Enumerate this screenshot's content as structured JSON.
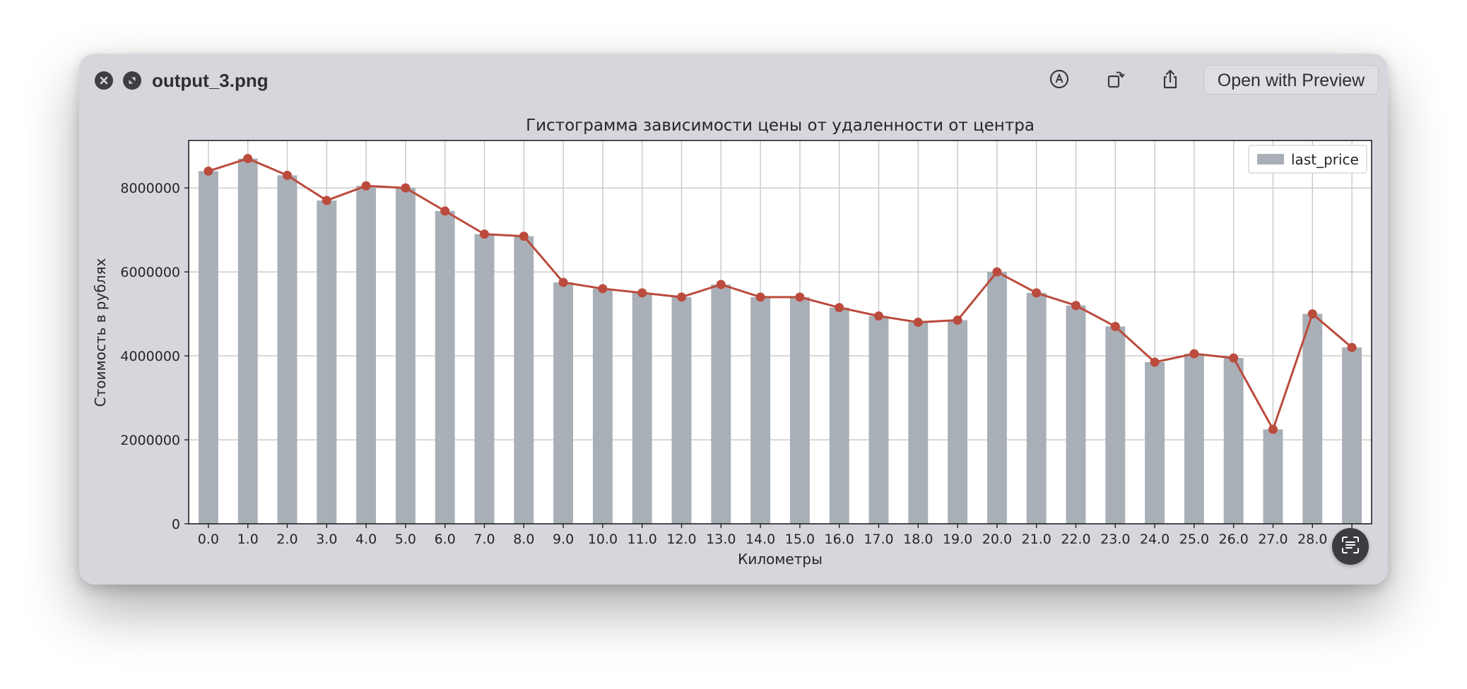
{
  "window": {
    "file_name": "output_3.png",
    "open_with_label": "Open with Preview",
    "icons": {
      "close": "close-icon",
      "fullscreen": "fullscreen-icon",
      "markup": "markup-pen-icon",
      "rotate": "rotate-icon",
      "share": "share-icon",
      "live_text": "live-text-icon"
    }
  },
  "chart_data": {
    "type": "bar",
    "title": "Гистограмма зависимости цены от удаленности от центра",
    "xlabel": "Километры",
    "ylabel": "Стоимость в рублях",
    "categories": [
      "0.0",
      "1.0",
      "2.0",
      "3.0",
      "4.0",
      "5.0",
      "6.0",
      "7.0",
      "8.0",
      "9.0",
      "10.0",
      "11.0",
      "12.0",
      "13.0",
      "14.0",
      "15.0",
      "16.0",
      "17.0",
      "18.0",
      "19.0",
      "20.0",
      "21.0",
      "22.0",
      "23.0",
      "24.0",
      "25.0",
      "26.0",
      "27.0",
      "28.0",
      "29.0"
    ],
    "series": [
      {
        "name": "last_price",
        "type": "bar",
        "color": "#a9afb6",
        "values": [
          8400000,
          8700000,
          8300000,
          7700000,
          8050000,
          8000000,
          7450000,
          6900000,
          6850000,
          5750000,
          5600000,
          5500000,
          5400000,
          5700000,
          5400000,
          5400000,
          5150000,
          4950000,
          4800000,
          4850000,
          6000000,
          5500000,
          5200000,
          4700000,
          3850000,
          4050000,
          3950000,
          2250000,
          5000000,
          4200000
        ]
      },
      {
        "type": "line",
        "color": "#bb4b3d",
        "values": [
          8400000,
          8700000,
          8300000,
          7700000,
          8050000,
          8000000,
          7450000,
          6900000,
          6850000,
          5750000,
          5600000,
          5500000,
          5400000,
          5700000,
          5400000,
          5400000,
          5150000,
          4950000,
          4800000,
          4850000,
          6000000,
          5500000,
          5200000,
          4700000,
          3850000,
          4050000,
          3950000,
          2250000,
          5000000,
          4200000
        ]
      }
    ],
    "yticks": [
      "0",
      "2000000",
      "4000000",
      "6000000",
      "8000000"
    ],
    "ylim": [
      0,
      9130000
    ],
    "grid": true,
    "legend": "top-right"
  }
}
